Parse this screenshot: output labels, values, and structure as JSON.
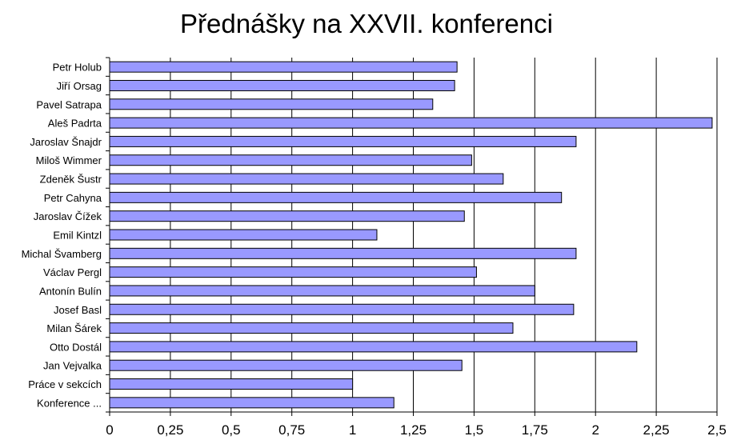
{
  "chart_data": {
    "type": "bar",
    "orientation": "horizontal",
    "title": "Přednášky na XXVII. konferenci",
    "xlabel": "",
    "ylabel": "",
    "xlim": [
      0,
      2.5
    ],
    "grid": true,
    "bar_color": "#9999ff",
    "categories": [
      "Petr Holub",
      "Jiří Orsag",
      "Pavel Satrapa",
      "Aleš Padrta",
      "Jaroslav Šnajdr",
      "Miloš Wimmer",
      "Zdeněk Šustr",
      "Petr Cahyna",
      "Jaroslav Čížek",
      "Emil Kintzl",
      "Michal Švamberg",
      "Václav Pergl",
      "Antonín Bulín",
      "Josef Basl",
      "Milan Šárek",
      "Otto Dostál",
      "Jan Vejvalka",
      "Práce v sekcích",
      "Konference ..."
    ],
    "values": [
      1.43,
      1.42,
      1.33,
      2.48,
      1.92,
      1.49,
      1.62,
      1.86,
      1.46,
      1.1,
      1.92,
      1.51,
      1.75,
      1.91,
      1.66,
      2.17,
      1.45,
      1.0,
      1.17
    ],
    "x_tick_labels": [
      "0",
      "0,25",
      "0,5",
      "0,75",
      "1",
      "1,25",
      "1,5",
      "1,75",
      "2",
      "2,25",
      "2,5"
    ]
  }
}
